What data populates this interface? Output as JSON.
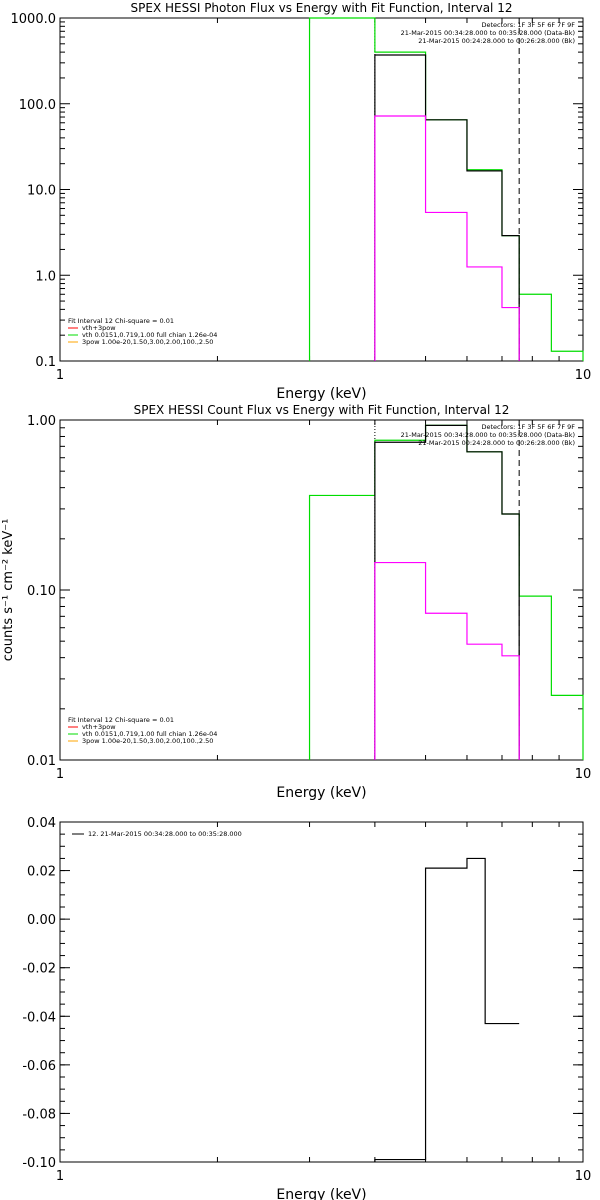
{
  "chart_data": [
    {
      "type": "line",
      "title": "SPEX HESSI Photon Flux vs Energy with Fit Function, Interval 12",
      "xlabel": "Energy (keV)",
      "ylabel": "",
      "x_scale": "log",
      "y_scale": "log",
      "xlim": [
        1,
        10
      ],
      "ylim": [
        0.1,
        1000
      ],
      "x_ticks": [
        {
          "v": 1,
          "label": "1"
        },
        {
          "v": 10,
          "label": "10"
        }
      ],
      "y_ticks": [
        {
          "v": 0.1,
          "label": "0.1"
        },
        {
          "v": 1,
          "label": "1.0"
        },
        {
          "v": 10,
          "label": "10.0"
        },
        {
          "v": 100,
          "label": "100.0"
        },
        {
          "v": 1000,
          "label": "1000.0"
        }
      ],
      "vlines": [
        {
          "x": 4.0,
          "style": "dotted",
          "color": "#000000"
        },
        {
          "x": 7.55,
          "style": "dashed",
          "color": "#000000"
        }
      ],
      "info_lines": [
        "Detectors: 1F 3F 5F 6F 7F 9F",
        "21-Mar-2015 00:34:28.000 to 00:35:28.000 (Data-Bk)",
        "21-Mar-2015 00:24:28.000 to 00:26:28.000 (Bk)"
      ],
      "legend_title": "Fit Interval 12   Chi-square = 0.01",
      "legend": [
        {
          "label": "vth+3pow",
          "color": "#ff0000"
        },
        {
          "label": "vth 0.0151,0.719,1.00  full chian 1.26e-04",
          "color": "#00dd00"
        },
        {
          "label": "3pow 1.00e-20,1.50,3.00,2.00,100.,2.50",
          "color": "#ffa500"
        }
      ],
      "series": [
        {
          "color": "#00dd00",
          "edges": [
            3.0,
            4.0,
            5.0,
            6.0,
            7.0,
            7.55,
            8.7,
            10.0
          ],
          "values": [
            1000,
            400,
            65,
            17,
            2.9,
            0.6,
            0.13
          ]
        },
        {
          "color": "#000000",
          "edges": [
            4.0,
            5.0,
            6.0,
            7.0,
            7.55
          ],
          "values": [
            370,
            65,
            16.5,
            2.9
          ]
        },
        {
          "color": "#ff00ff",
          "edges": [
            4.0,
            5.0,
            6.0,
            7.0,
            7.55
          ],
          "values": [
            72,
            5.4,
            1.25,
            0.42
          ]
        }
      ]
    },
    {
      "type": "line",
      "title": "SPEX HESSI Count Flux vs Energy with Fit Function, Interval 12",
      "xlabel": "Energy (keV)",
      "ylabel": "counts s⁻¹ cm⁻² keV⁻¹",
      "x_scale": "log",
      "y_scale": "log",
      "xlim": [
        1,
        10
      ],
      "ylim": [
        0.01,
        1.0
      ],
      "x_ticks": [
        {
          "v": 1,
          "label": "1"
        },
        {
          "v": 10,
          "label": "10"
        }
      ],
      "y_ticks": [
        {
          "v": 0.01,
          "label": "0.01"
        },
        {
          "v": 0.1,
          "label": "0.10"
        },
        {
          "v": 1.0,
          "label": "1.00"
        }
      ],
      "vlines": [
        {
          "x": 4.0,
          "style": "dotted",
          "color": "#000000"
        },
        {
          "x": 7.55,
          "style": "dashed",
          "color": "#000000"
        }
      ],
      "info_lines": [
        "Detectors: 1F 3F 5F 6F 7F 9F",
        "21-Mar-2015 00:34:28.000 to 00:35:28.000 (Data-Bk)",
        "21-Mar-2015 00:24:28.000 to 00:26:28.000 (Bk)"
      ],
      "legend_title": "Fit Interval 12   Chi-square = 0.01",
      "legend": [
        {
          "label": "vth+3pow",
          "color": "#ff0000"
        },
        {
          "label": "vth 0.0151,0.719,1.00  full chian 1.26e-04",
          "color": "#00dd00"
        },
        {
          "label": "3pow 1.00e-20,1.50,3.00,2.00,100.,2.50",
          "color": "#ffa500"
        }
      ],
      "series": [
        {
          "color": "#00dd00",
          "edges": [
            3.0,
            4.0,
            5.0,
            6.0,
            7.0,
            7.55,
            8.7,
            10.0
          ],
          "values": [
            0.36,
            0.76,
            0.93,
            0.65,
            0.28,
            0.092,
            0.024
          ]
        },
        {
          "color": "#000000",
          "edges": [
            4.0,
            5.0,
            6.0,
            7.0,
            7.55
          ],
          "values": [
            0.74,
            0.93,
            0.65,
            0.28
          ]
        },
        {
          "color": "#ff00ff",
          "edges": [
            4.0,
            5.0,
            6.0,
            7.0,
            7.55
          ],
          "values": [
            0.145,
            0.073,
            0.048,
            0.041
          ]
        }
      ]
    },
    {
      "type": "line",
      "title": "",
      "xlabel": "Energy (keV)",
      "ylabel": "",
      "x_scale": "log",
      "y_scale": "linear",
      "xlim": [
        1,
        10
      ],
      "ylim": [
        -0.1,
        0.04
      ],
      "x_ticks": [
        {
          "v": 1,
          "label": "1"
        },
        {
          "v": 10,
          "label": "10"
        }
      ],
      "y_ticks": [
        {
          "v": -0.1,
          "label": "-0.10"
        },
        {
          "v": -0.08,
          "label": "-0.08"
        },
        {
          "v": -0.06,
          "label": "-0.06"
        },
        {
          "v": -0.04,
          "label": "-0.04"
        },
        {
          "v": -0.02,
          "label": "-0.02"
        },
        {
          "v": 0.0,
          "label": "0.00"
        },
        {
          "v": 0.02,
          "label": "0.02"
        },
        {
          "v": 0.04,
          "label": "0.04"
        }
      ],
      "vlines": [],
      "info_lines": [],
      "legend_title": "",
      "legend": [
        {
          "label": "12. 21-Mar-2015 00:34:28.000 to 00:35:28.000",
          "color": "#000000"
        }
      ],
      "series": [
        {
          "color": "#000000",
          "edges": [
            4.0,
            5.0,
            6.0,
            6.5,
            7.55
          ],
          "values": [
            -0.099,
            0.021,
            0.025,
            -0.043
          ]
        }
      ]
    }
  ]
}
